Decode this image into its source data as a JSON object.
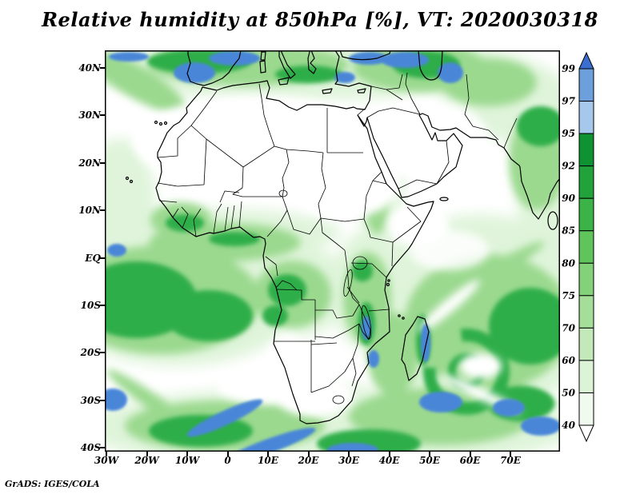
{
  "title": "Relative humidity at 850hPa [%], VT: 2020030318",
  "credit": "GrADS: IGES/COLA",
  "map": {
    "y_axis": {
      "labels": [
        "40N",
        "30N",
        "20N",
        "10N",
        "EQ",
        "10S",
        "20S",
        "30S",
        "40S"
      ]
    },
    "x_axis": {
      "labels": [
        "30W",
        "20W",
        "10W",
        "0",
        "10E",
        "20E",
        "30E",
        "40E",
        "50E",
        "60E",
        "70E"
      ]
    }
  },
  "colorbar": {
    "labels_top_to_bottom": [
      "99",
      "97",
      "95",
      "92",
      "90",
      "85",
      "80",
      "75",
      "70",
      "60",
      "50",
      "40"
    ],
    "colors_top_to_bottom": [
      "#3a6fd0",
      "#6e9fdd",
      "#a6c8ec",
      "#0f9232",
      "#21a23b",
      "#3cb347",
      "#5fc45c",
      "#83d178",
      "#a5de98",
      "#c3e9ba",
      "#ddf3d8",
      "#f0faee",
      "#ffffff"
    ]
  },
  "chart_data": {
    "type": "heatmap",
    "title": "Relative humidity at 850hPa [%], VT: 2020030318",
    "units": "%",
    "levels": [
      40,
      50,
      60,
      70,
      75,
      80,
      85,
      90,
      92,
      95,
      97,
      99
    ],
    "x_range": [
      "30W",
      "70E"
    ],
    "y_range": [
      "40S",
      "40N"
    ],
    "legend_position": "right"
  }
}
